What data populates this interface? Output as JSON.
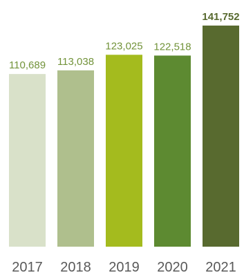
{
  "chart_data": {
    "type": "bar",
    "title": "",
    "xlabel": "",
    "ylabel": "",
    "categories": [
      "2017",
      "2018",
      "2019",
      "2020",
      "2021"
    ],
    "values": [
      110689,
      113038,
      123025,
      122518,
      141752
    ],
    "value_labels": [
      "110,689",
      "113,038",
      "123,025",
      "122,518",
      "141,752"
    ],
    "bar_colors": [
      "#d9e1c9",
      "#afbf8d",
      "#a4bb1e",
      "#5d8a31",
      "#586a2f"
    ],
    "label_colors": [
      "#72933a",
      "#72933a",
      "#72933a",
      "#72933a",
      "#586a2f"
    ],
    "emphasized_label_index": 4,
    "ylim": [
      0,
      145000
    ],
    "grid": false,
    "legend": "none"
  }
}
